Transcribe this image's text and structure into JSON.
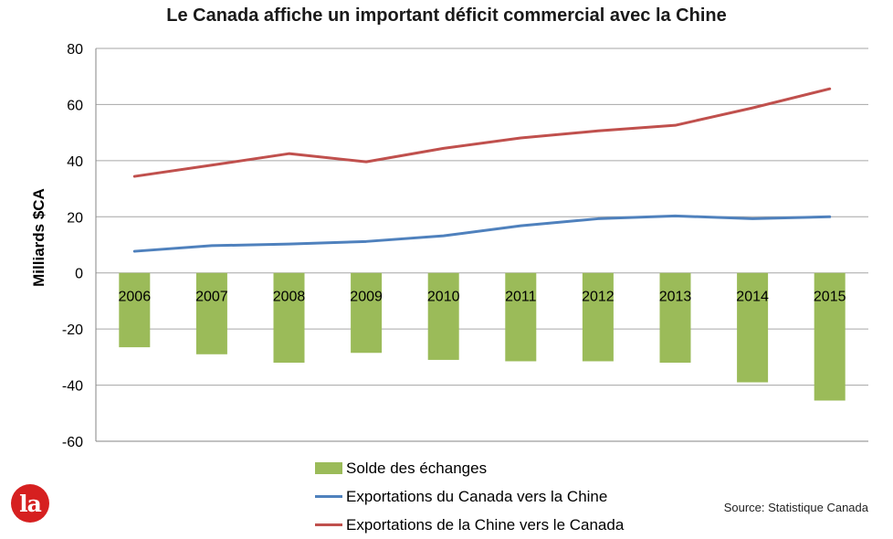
{
  "title": "Le Canada affiche un important déficit commercial avec la Chine",
  "source": "Source: Statistique Canada",
  "logo_text": "la",
  "colors": {
    "bars": "#9bbb59",
    "exports_canada": "#4f81bd",
    "exports_china": "#c0504d",
    "grid": "#a6a6a6"
  },
  "chart_data": {
    "type": "bar",
    "categories": [
      "2006",
      "2007",
      "2008",
      "2009",
      "2010",
      "2011",
      "2012",
      "2013",
      "2014",
      "2015"
    ],
    "ylabel": "Milliards $CA",
    "xlabel": "",
    "ylim": [
      -60,
      80
    ],
    "yticks": [
      80,
      60,
      40,
      20,
      0,
      -20,
      -40,
      -60
    ],
    "grid": true,
    "series": [
      {
        "name": "Solde des échanges",
        "kind": "bar",
        "values": [
          -26.5,
          -29,
          -32,
          -28.5,
          -31,
          -31.5,
          -31.5,
          -32,
          -39,
          -45.5
        ]
      },
      {
        "name": "Exportations du Canada vers la Chine",
        "kind": "line",
        "values": [
          7.7,
          9.7,
          10.3,
          11.2,
          13.2,
          16.8,
          19.3,
          20.3,
          19.3,
          20
        ]
      },
      {
        "name": "Exportations de la Chine vers le Canada",
        "kind": "line",
        "values": [
          34.4,
          38.4,
          42.5,
          39.6,
          44.4,
          48.1,
          50.6,
          52.6,
          58.8,
          65.6
        ]
      }
    ],
    "legend_position": "bottom"
  }
}
